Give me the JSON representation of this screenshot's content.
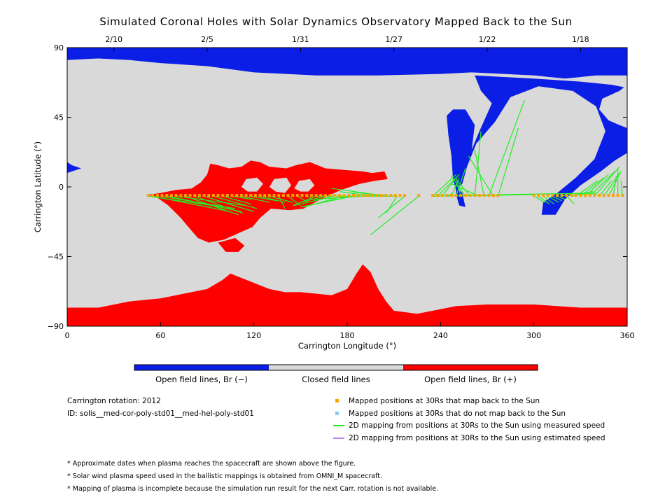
{
  "chart_data": {
    "type": "map",
    "title": "Simulated Coronal Holes with Solar Dynamics Observatory Mapped Back to the Sun",
    "xlabel": "Carrington Longitude (°)",
    "ylabel": "Carrington Latitude (°)",
    "xlim": [
      0,
      360
    ],
    "ylim": [
      -90,
      90
    ],
    "xticks": [
      0,
      60,
      120,
      180,
      240,
      300,
      360
    ],
    "yticks": [
      -90,
      -45,
      0,
      45,
      90
    ],
    "ytick_labels": [
      "−90",
      "−45",
      "0",
      "45",
      "90"
    ],
    "top_axis": [
      {
        "label": "2/10",
        "lon": 30
      },
      {
        "label": "2/5",
        "lon": 90
      },
      {
        "label": "1/31",
        "lon": 150
      },
      {
        "label": "1/27",
        "lon": 210
      },
      {
        "label": "1/22",
        "lon": 270
      },
      {
        "label": "1/18",
        "lon": 330
      }
    ],
    "colors": {
      "open_negative": "#0a1ee6",
      "closed": "#d9d9d9",
      "open_positive": "#ff0000",
      "mapped": "#f5a500",
      "not_mapped": "#87c8f0",
      "measured_line": "#22ee22",
      "estimated_line": "#b98cf0"
    },
    "colorbar": [
      {
        "label": "Open field lines, Br (−)",
        "color": "#0a1ee6"
      },
      {
        "label": "Closed field lines",
        "color": "#d9d9d9"
      },
      {
        "label": "Open field lines, Br (+)",
        "color": "#ff0000"
      }
    ],
    "regions": {
      "negative_polar_north": [
        [
          0,
          90
        ],
        [
          360,
          90
        ],
        [
          360,
          72
        ],
        [
          340,
          72
        ],
        [
          320,
          70
        ],
        [
          300,
          72
        ],
        [
          260,
          74
        ],
        [
          240,
          73
        ],
        [
          200,
          72
        ],
        [
          160,
          72
        ],
        [
          120,
          74
        ],
        [
          90,
          78
        ],
        [
          60,
          80
        ],
        [
          40,
          82
        ],
        [
          20,
          83
        ],
        [
          0,
          82
        ]
      ],
      "negative_tongue": [
        [
          262,
          72
        ],
        [
          300,
          70
        ],
        [
          330,
          68
        ],
        [
          350,
          66
        ],
        [
          360,
          64
        ],
        [
          360,
          22
        ],
        [
          352,
          17
        ],
        [
          343,
          10
        ],
        [
          330,
          1
        ],
        [
          320,
          -8
        ],
        [
          314,
          -18
        ],
        [
          305,
          -18
        ],
        [
          306,
          -10
        ],
        [
          315,
          -4
        ],
        [
          327,
          6
        ],
        [
          339,
          18
        ],
        [
          346,
          36
        ],
        [
          340,
          52
        ],
        [
          325,
          62
        ],
        [
          303,
          65
        ],
        [
          285,
          58
        ],
        [
          275,
          42
        ],
        [
          263,
          28
        ],
        [
          257,
          13
        ],
        [
          254,
          2
        ],
        [
          250,
          -2
        ],
        [
          248,
          5
        ],
        [
          247,
          20
        ],
        [
          245,
          34
        ],
        [
          244,
          46
        ],
        [
          248,
          50
        ],
        [
          256,
          50
        ],
        [
          262,
          40
        ],
        [
          260,
          24
        ],
        [
          265,
          36
        ],
        [
          273,
          54
        ],
        [
          266,
          62
        ]
      ],
      "negative_right_notch": [
        [
          360,
          66
        ],
        [
          355,
          62
        ],
        [
          344,
          57
        ],
        [
          342,
          50
        ],
        [
          348,
          43
        ],
        [
          355,
          40
        ],
        [
          360,
          38
        ]
      ],
      "negative_left": [
        [
          0,
          16
        ],
        [
          3,
          14
        ],
        [
          9,
          12
        ],
        [
          3,
          10
        ],
        [
          0,
          9
        ]
      ],
      "negative_spike": [
        [
          250,
          0
        ],
        [
          254,
          -4
        ],
        [
          256,
          -13
        ],
        [
          252,
          -12
        ],
        [
          250,
          -5
        ]
      ],
      "positive_polar_south": [
        [
          0,
          -90
        ],
        [
          360,
          -90
        ],
        [
          360,
          -78
        ],
        [
          330,
          -78
        ],
        [
          300,
          -76
        ],
        [
          270,
          -76
        ],
        [
          250,
          -77
        ],
        [
          225,
          -82
        ],
        [
          210,
          -80
        ],
        [
          205,
          -74
        ],
        [
          200,
          -66
        ],
        [
          195,
          -55
        ],
        [
          190,
          -50
        ],
        [
          186,
          -56
        ],
        [
          180,
          -66
        ],
        [
          170,
          -70
        ],
        [
          150,
          -68
        ],
        [
          140,
          -68
        ],
        [
          130,
          -66
        ],
        [
          120,
          -62
        ],
        [
          110,
          -58
        ],
        [
          105,
          -56
        ],
        [
          100,
          -60
        ],
        [
          90,
          -66
        ],
        [
          60,
          -72
        ],
        [
          40,
          -74
        ],
        [
          20,
          -78
        ],
        [
          0,
          -78
        ]
      ],
      "positive_central": [
        [
          52,
          -5
        ],
        [
          60,
          -4
        ],
        [
          70,
          -2
        ],
        [
          80,
          -1
        ],
        [
          86,
          3
        ],
        [
          90,
          8
        ],
        [
          92,
          15
        ],
        [
          97,
          14
        ],
        [
          104,
          12
        ],
        [
          112,
          13
        ],
        [
          118,
          17
        ],
        [
          124,
          16
        ],
        [
          130,
          13
        ],
        [
          141,
          12
        ],
        [
          147,
          14
        ],
        [
          156,
          16
        ],
        [
          166,
          12
        ],
        [
          178,
          11
        ],
        [
          190,
          10
        ],
        [
          196,
          9
        ],
        [
          204,
          10
        ],
        [
          206,
          5
        ],
        [
          198,
          4
        ],
        [
          188,
          2
        ],
        [
          176,
          -2
        ],
        [
          163,
          -8
        ],
        [
          152,
          -14
        ],
        [
          143,
          -15
        ],
        [
          131,
          -14
        ],
        [
          124,
          -20
        ],
        [
          119,
          -26
        ],
        [
          110,
          -30
        ],
        [
          101,
          -34
        ],
        [
          91,
          -36
        ],
        [
          84,
          -33
        ],
        [
          78,
          -26
        ],
        [
          73,
          -20
        ],
        [
          65,
          -12
        ],
        [
          58,
          -7
        ]
      ],
      "closed_hole_a": [
        [
          112,
          0
        ],
        [
          115,
          5
        ],
        [
          122,
          6
        ],
        [
          126,
          2
        ],
        [
          122,
          -3
        ],
        [
          116,
          -3
        ]
      ],
      "closed_hole_b": [
        [
          130,
          0
        ],
        [
          133,
          5
        ],
        [
          141,
          6
        ],
        [
          144,
          1
        ],
        [
          140,
          -4
        ],
        [
          134,
          -3
        ]
      ],
      "closed_hole_c": [
        [
          146,
          -1
        ],
        [
          149,
          4
        ],
        [
          156,
          5
        ],
        [
          159,
          1
        ],
        [
          155,
          -3
        ],
        [
          150,
          -3
        ]
      ],
      "positive_south_tail": [
        [
          97,
          -36
        ],
        [
          102,
          -42
        ],
        [
          110,
          -42
        ],
        [
          114,
          -38
        ],
        [
          108,
          -33
        ]
      ]
    },
    "mapped_points_lon": [
      52,
      55,
      58,
      61,
      64,
      67,
      70,
      73,
      76,
      79,
      82,
      85,
      88,
      91,
      94,
      97,
      100,
      103,
      106,
      109,
      112,
      115,
      118,
      121,
      124,
      127,
      130,
      133,
      136,
      139,
      142,
      145,
      148,
      151,
      154,
      157,
      160,
      163,
      166,
      169,
      172,
      175,
      178,
      181,
      184,
      187,
      190,
      193,
      196,
      199,
      202,
      205,
      208,
      211,
      214,
      217,
      226,
      235,
      238,
      241,
      244,
      247,
      250,
      253,
      256,
      259,
      262,
      265,
      268,
      271,
      274,
      277,
      300,
      303,
      306,
      309,
      312,
      315,
      318,
      321,
      324,
      327,
      330,
      333,
      336,
      339,
      342,
      345,
      348,
      351,
      354,
      357
    ],
    "mapped_points_lat": -5.5,
    "mapping_lines": [
      [
        [
          52,
          -6
        ],
        [
          100,
          -13
        ]
      ],
      [
        [
          55,
          -6
        ],
        [
          105,
          -16
        ]
      ],
      [
        [
          60,
          -6
        ],
        [
          108,
          -14
        ]
      ],
      [
        [
          65,
          -6
        ],
        [
          112,
          -16
        ]
      ],
      [
        [
          70,
          -6
        ],
        [
          115,
          -12
        ]
      ],
      [
        [
          76,
          -6
        ],
        [
          110,
          -18
        ]
      ],
      [
        [
          82,
          -6
        ],
        [
          113,
          -17
        ]
      ],
      [
        [
          88,
          -6
        ],
        [
          120,
          -16
        ]
      ],
      [
        [
          94,
          -6
        ],
        [
          122,
          -14
        ]
      ],
      [
        [
          100,
          -6
        ],
        [
          118,
          -11
        ]
      ],
      [
        [
          106,
          -6
        ],
        [
          118,
          -8
        ]
      ],
      [
        [
          112,
          -6
        ],
        [
          130,
          -10
        ]
      ],
      [
        [
          118,
          -6
        ],
        [
          135,
          -9
        ]
      ],
      [
        [
          124,
          -6
        ],
        [
          140,
          -10
        ]
      ],
      [
        [
          130,
          -6
        ],
        [
          145,
          -10
        ]
      ],
      [
        [
          136,
          -6
        ],
        [
          140,
          -14
        ]
      ],
      [
        [
          142,
          -6
        ],
        [
          150,
          -12
        ]
      ],
      [
        [
          148,
          -6
        ],
        [
          155,
          -10
        ]
      ],
      [
        [
          154,
          -6
        ],
        [
          160,
          -9
        ]
      ],
      [
        [
          160,
          -6
        ],
        [
          145,
          -12
        ]
      ],
      [
        [
          166,
          -6
        ],
        [
          150,
          -10
        ]
      ],
      [
        [
          172,
          -6
        ],
        [
          146,
          -12
        ]
      ],
      [
        [
          178,
          -6
        ],
        [
          152,
          -13
        ]
      ],
      [
        [
          184,
          -6
        ],
        [
          150,
          -13
        ]
      ],
      [
        [
          190,
          -6
        ],
        [
          160,
          -8
        ]
      ],
      [
        [
          196,
          -6
        ],
        [
          175,
          -3
        ]
      ],
      [
        [
          202,
          -6
        ],
        [
          183,
          -3
        ]
      ],
      [
        [
          206,
          -6
        ],
        [
          170,
          -1
        ]
      ],
      [
        [
          212,
          -6
        ],
        [
          205,
          -17
        ]
      ],
      [
        [
          217,
          -6
        ],
        [
          200,
          -20
        ]
      ],
      [
        [
          226,
          -6
        ],
        [
          195,
          -31
        ]
      ],
      [
        [
          235,
          -6
        ],
        [
          250,
          8
        ]
      ],
      [
        [
          238,
          -6
        ],
        [
          252,
          8
        ]
      ],
      [
        [
          241,
          -6
        ],
        [
          250,
          6
        ]
      ],
      [
        [
          244,
          -6
        ],
        [
          248,
          -4
        ]
      ],
      [
        [
          247,
          -6
        ],
        [
          252,
          6
        ]
      ],
      [
        [
          250,
          -6
        ],
        [
          256,
          12
        ]
      ],
      [
        [
          253,
          -6
        ],
        [
          250,
          6
        ]
      ],
      [
        [
          256,
          -6
        ],
        [
          247,
          7
        ]
      ],
      [
        [
          259,
          -6
        ],
        [
          250,
          5
        ]
      ],
      [
        [
          262,
          -6
        ],
        [
          266,
          36
        ]
      ],
      [
        [
          265,
          -6
        ],
        [
          247,
          2
        ]
      ],
      [
        [
          268,
          -6
        ],
        [
          262,
          24
        ]
      ],
      [
        [
          271,
          -6
        ],
        [
          294,
          56
        ]
      ],
      [
        [
          274,
          -6
        ],
        [
          258,
          20
        ]
      ],
      [
        [
          277,
          -6
        ],
        [
          290,
          38
        ]
      ],
      [
        [
          300,
          -6
        ],
        [
          307,
          -10
        ]
      ],
      [
        [
          303,
          -6
        ],
        [
          310,
          -11
        ]
      ],
      [
        [
          306,
          -6
        ],
        [
          313,
          -11
        ]
      ],
      [
        [
          309,
          -6
        ],
        [
          316,
          -10
        ]
      ],
      [
        [
          312,
          -6
        ],
        [
          318,
          -9
        ]
      ],
      [
        [
          315,
          -6
        ],
        [
          320,
          -8
        ]
      ],
      [
        [
          318,
          -6
        ],
        [
          325,
          -4
        ]
      ],
      [
        [
          321,
          -6
        ],
        [
          326,
          -11
        ]
      ],
      [
        [
          324,
          -6
        ],
        [
          338,
          -3
        ]
      ],
      [
        [
          327,
          -6
        ],
        [
          341,
          4
        ]
      ],
      [
        [
          330,
          -6
        ],
        [
          345,
          6
        ]
      ],
      [
        [
          333,
          -6
        ],
        [
          348,
          8
        ]
      ],
      [
        [
          336,
          -6
        ],
        [
          352,
          10
        ]
      ],
      [
        [
          339,
          -6
        ],
        [
          355,
          13
        ]
      ],
      [
        [
          342,
          -6
        ],
        [
          350,
          4
        ]
      ],
      [
        [
          345,
          -6
        ],
        [
          355,
          9
        ]
      ],
      [
        [
          348,
          -6
        ],
        [
          356,
          10
        ]
      ],
      [
        [
          351,
          -6
        ],
        [
          353,
          7
        ]
      ],
      [
        [
          354,
          -6
        ],
        [
          354,
          12
        ]
      ],
      [
        [
          357,
          -6
        ],
        [
          356,
          4
        ]
      ],
      [
        [
          235,
          -6
        ],
        [
          300,
          -5
        ]
      ],
      [
        [
          277,
          -5
        ],
        [
          340,
          -4
        ]
      ],
      [
        [
          160,
          -6
        ],
        [
          210,
          -6
        ]
      ]
    ]
  },
  "info": {
    "rotation": "Carrington rotation: 2012",
    "id": "ID: solis__med-cor-poly-std01__med-hel-poly-std01"
  },
  "legend": [
    {
      "label": "Mapped positions at 30Rs that map back to the Sun",
      "kind": "square",
      "color": "#f5a500"
    },
    {
      "label": "Mapped positions at 30Rs that do not map back to the Sun",
      "kind": "square",
      "color": "#87c8f0"
    },
    {
      "label": "2D mapping from positions at 30Rs to the Sun using measured speed",
      "kind": "line",
      "color": "#22ee22"
    },
    {
      "label": "2D mapping from positions at 30Rs to the Sun using estimated speed",
      "kind": "line",
      "color": "#b98cf0"
    }
  ],
  "notes": [
    "* Approximate dates when plasma reaches the spacecraft are shown above the figure.",
    "* Solar wind plasma speed used in the ballistic mappings is obtained from OMNI_M spacecraft.",
    "* Mapping of plasma is incomplete because the simulation run result for the next Carr. rotation is not available."
  ]
}
